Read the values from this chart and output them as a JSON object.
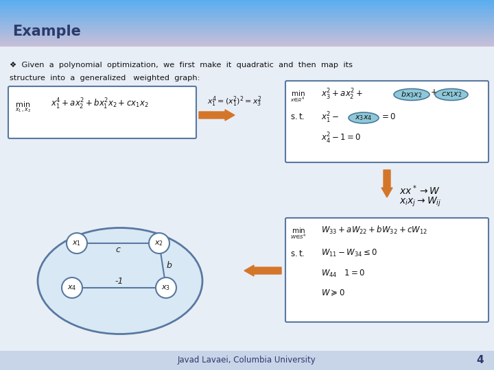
{
  "title": "Example",
  "title_color": "#2B3A6B",
  "bg_color": "#E8EEF6",
  "footer_text": "Javad Lavaei, Columbia University",
  "footer_number": "4",
  "body_text_line1": "❖  Given  a  polynomial  optimization,  we  first  make  it  quadratic  and  then  map  its",
  "body_text_line2": "structure  into  a  generalized   weighted  graph:",
  "arrow_color": "#D4762A",
  "oval_color": "#8EC8D8",
  "oval_edge_color": "#4A7A9B",
  "box_edge_color": "#5878A0",
  "node_color": "#FFFFFF",
  "graph_bg_color": "#D8E8F0",
  "footer_bg": "#C8D4E8",
  "header_top": "#5AAEF0",
  "header_bottom": "#C8C0D8"
}
